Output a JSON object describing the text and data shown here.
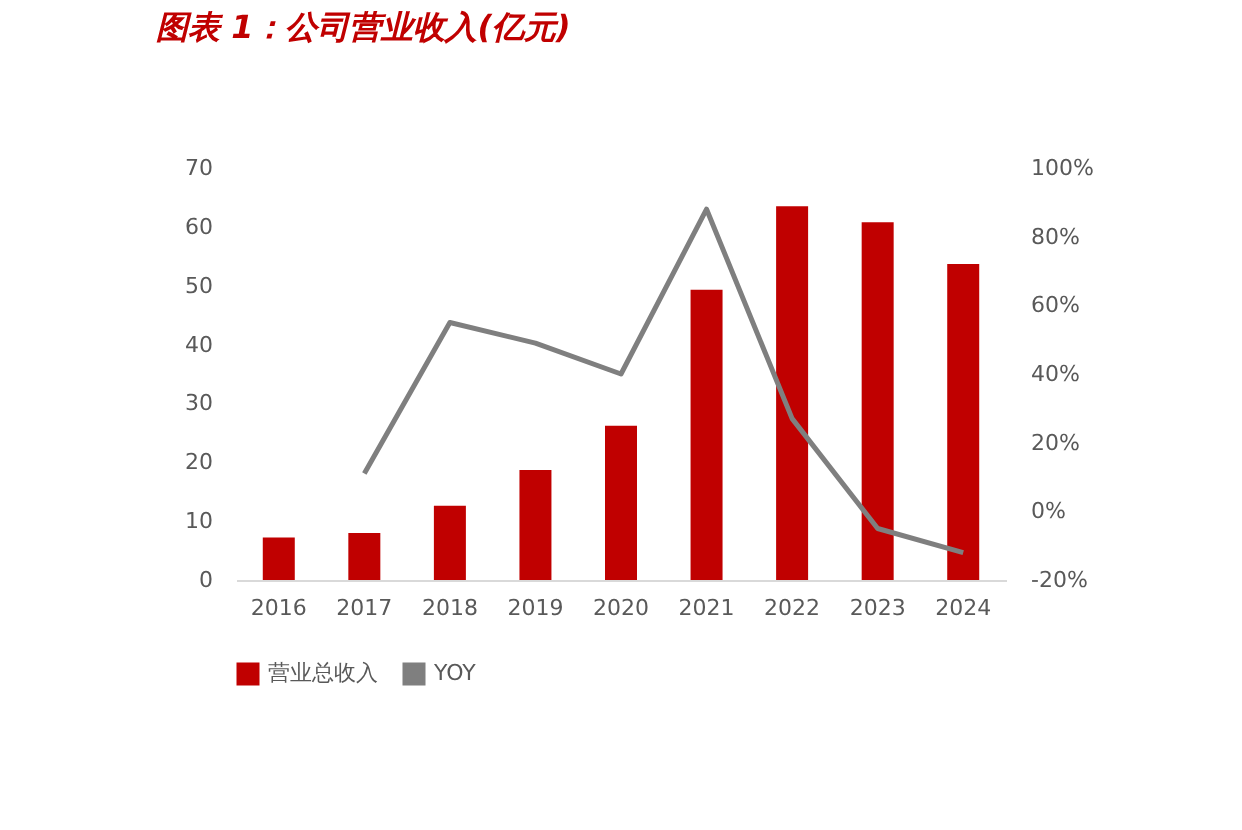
{
  "chart_data": {
    "type": "bar",
    "title": "图表 1：公司营业收入(亿元)",
    "categories": [
      "2016",
      "2017",
      "2018",
      "2019",
      "2020",
      "2021",
      "2022",
      "2023",
      "2024"
    ],
    "series": [
      {
        "name": "营业总收入",
        "color": "#c00000",
        "values": [
          7.2,
          8,
          12.6,
          18.7,
          26.2,
          49.3,
          63.5,
          60.8,
          53.7
        ]
      },
      {
        "name": "YOY",
        "type": "line",
        "axis": "y2",
        "color": "#7f7f7f",
        "values": [
          null,
          11,
          55,
          49,
          40,
          88,
          27,
          -5,
          -12
        ]
      }
    ],
    "ylim": [
      0,
      70
    ],
    "yticks": [
      0,
      10,
      20,
      30,
      40,
      50,
      60,
      70
    ],
    "y2lim": [
      -20,
      100
    ],
    "y2ticks": [
      {
        "value": -20,
        "label": "-20%"
      },
      {
        "value": 0,
        "label": "0%"
      },
      {
        "value": 20,
        "label": "20%"
      },
      {
        "value": 40,
        "label": "40%"
      },
      {
        "value": 60,
        "label": "60%"
      },
      {
        "value": 80,
        "label": "80%"
      },
      {
        "value": 100,
        "label": "100%"
      }
    ],
    "grid": false,
    "legend": "bottom",
    "marker": "none",
    "line_style": "solid"
  }
}
